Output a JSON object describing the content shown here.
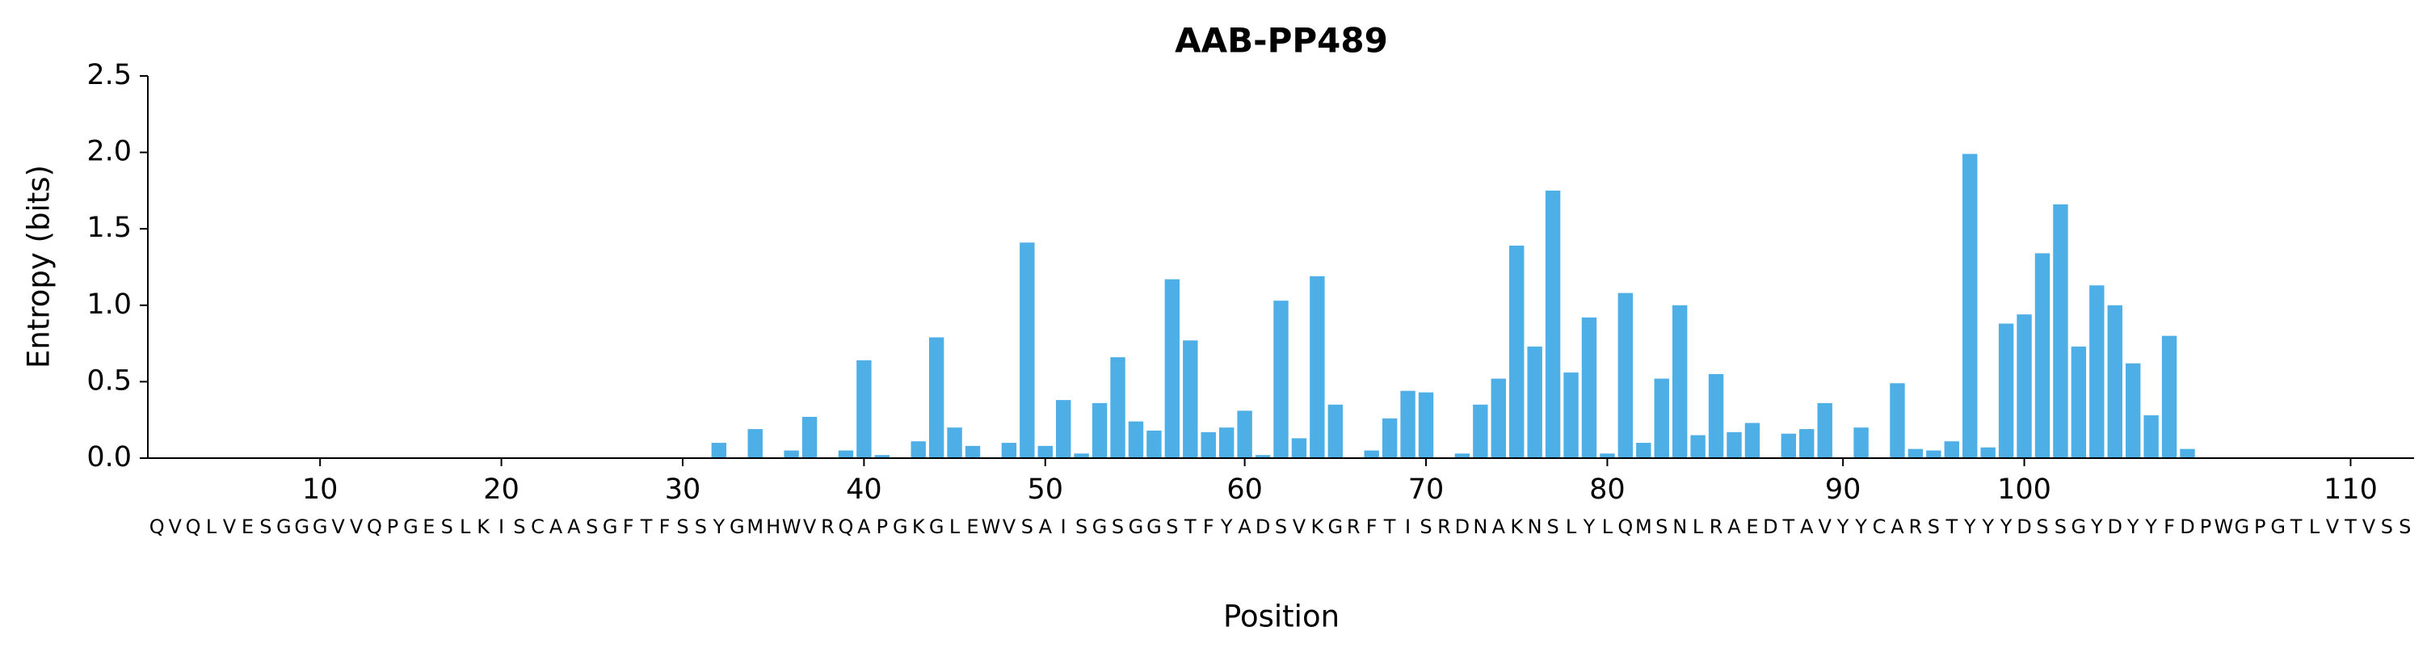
{
  "chart_data": {
    "type": "bar",
    "title": "AAB-PP489",
    "x_label": "Position",
    "y_label": "Entropy (bits)",
    "categories": [
      "Q",
      "V",
      "Q",
      "L",
      "V",
      "E",
      "S",
      "G",
      "G",
      "G",
      "V",
      "V",
      "Q",
      "P",
      "G",
      "E",
      "S",
      "L",
      "K",
      "I",
      "S",
      "C",
      "A",
      "A",
      "S",
      "G",
      "F",
      "T",
      "F",
      "S",
      "S",
      "Y",
      "G",
      "M",
      "H",
      "W",
      "V",
      "R",
      "Q",
      "A",
      "P",
      "G",
      "K",
      "G",
      "L",
      "E",
      "W",
      "V",
      "S",
      "A",
      "I",
      "S",
      "G",
      "S",
      "G",
      "G",
      "S",
      "T",
      "F",
      "Y",
      "A",
      "D",
      "S",
      "V",
      "K",
      "G",
      "R",
      "F",
      "T",
      "I",
      "S",
      "R",
      "D",
      "N",
      "A",
      "K",
      "N",
      "S",
      "L",
      "Y",
      "L",
      "Q",
      "M",
      "S",
      "N",
      "L",
      "R",
      "A",
      "E",
      "D",
      "T",
      "A",
      "V",
      "Y",
      "Y",
      "C",
      "A",
      "R",
      "S",
      "T",
      "Y",
      "Y",
      "Y",
      "D",
      "S",
      "S",
      "G",
      "Y",
      "D",
      "Y",
      "Y",
      "F",
      "D",
      "P",
      "W",
      "G",
      "P",
      "G",
      "T",
      "L",
      "V",
      "T",
      "V",
      "S",
      "S"
    ],
    "values": [
      0,
      0,
      0,
      0,
      0,
      0,
      0,
      0,
      0,
      0,
      0,
      0,
      0,
      0,
      0,
      0,
      0,
      0,
      0,
      0,
      0,
      0,
      0,
      0,
      0,
      0,
      0,
      0,
      0,
      0,
      0,
      0.1,
      0,
      0.19,
      0,
      0.05,
      0.27,
      0,
      0.05,
      0.64,
      0.02,
      0,
      0.11,
      0.79,
      0.2,
      0.08,
      0,
      0.1,
      1.41,
      0.08,
      0.38,
      0.03,
      0.36,
      0.66,
      0.24,
      0.18,
      1.17,
      0.77,
      0.17,
      0.2,
      0.31,
      0.02,
      1.03,
      0.13,
      1.19,
      0.35,
      0,
      0.05,
      0.26,
      0.44,
      0.43,
      0,
      0.03,
      0.35,
      0.52,
      1.39,
      0.73,
      1.75,
      0.56,
      0.92,
      0.03,
      1.08,
      0.1,
      0.52,
      1.0,
      0.15,
      0.55,
      0.17,
      0.23,
      0,
      0.16,
      0.19,
      0.36,
      0,
      0.2,
      0,
      0.49,
      0.06,
      0.05,
      0.11,
      1.99,
      0.07,
      0.88,
      0.94,
      1.34,
      1.66,
      0.73,
      1.13,
      1.0,
      0.62,
      0.28,
      0.8,
      0.06,
      0,
      0,
      0,
      0,
      0,
      0,
      0,
      0,
      0,
      0,
      0,
      0
    ],
    "color": "#4eaee6",
    "xticks": [
      {
        "value": 9,
        "label": "10"
      },
      {
        "value": 19,
        "label": "20"
      },
      {
        "value": 29,
        "label": "30"
      },
      {
        "value": 39,
        "label": "40"
      },
      {
        "value": 49,
        "label": "50"
      },
      {
        "value": 60,
        "label": "60"
      },
      {
        "value": 70,
        "label": "70"
      },
      {
        "value": 80,
        "label": "80"
      },
      {
        "value": 93,
        "label": "90"
      },
      {
        "value": 103,
        "label": "100"
      },
      {
        "value": 121,
        "label": "110"
      }
    ],
    "ylim": [
      0,
      2.5
    ],
    "yticks": [
      {
        "value": 0,
        "label": "0.0"
      },
      0.5,
      {
        "value": 1,
        "label": "1.0"
      },
      1.5,
      {
        "value": 2,
        "label": "2.0"
      },
      2.5
    ]
  }
}
